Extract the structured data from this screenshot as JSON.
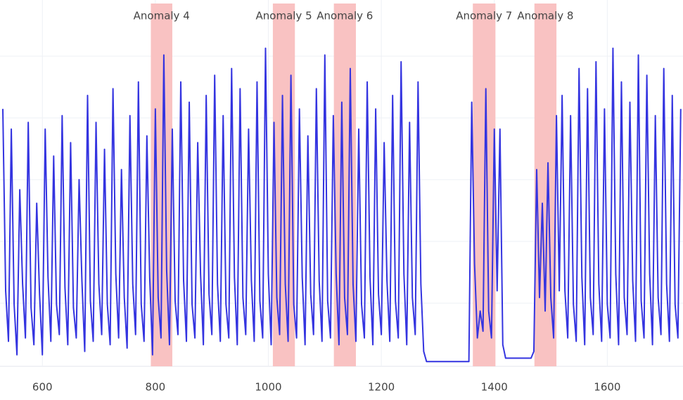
{
  "chart_data": {
    "type": "line",
    "x": [
      530,
      535,
      540,
      545,
      550,
      555,
      560,
      565,
      570,
      575,
      580,
      585,
      590,
      595,
      600,
      605,
      610,
      615,
      620,
      625,
      630,
      635,
      640,
      645,
      650,
      655,
      660,
      665,
      670,
      675,
      680,
      685,
      690,
      695,
      700,
      705,
      710,
      715,
      720,
      725,
      730,
      735,
      740,
      745,
      750,
      755,
      760,
      765,
      770,
      775,
      780,
      785,
      790,
      795,
      800,
      805,
      810,
      815,
      820,
      825,
      830,
      835,
      840,
      845,
      850,
      855,
      860,
      865,
      870,
      875,
      880,
      885,
      890,
      895,
      900,
      905,
      910,
      915,
      920,
      925,
      930,
      935,
      940,
      945,
      950,
      955,
      960,
      965,
      970,
      975,
      980,
      985,
      990,
      995,
      1000,
      1005,
      1010,
      1015,
      1020,
      1025,
      1030,
      1035,
      1040,
      1045,
      1050,
      1055,
      1060,
      1065,
      1070,
      1075,
      1080,
      1085,
      1090,
      1095,
      1100,
      1105,
      1110,
      1115,
      1120,
      1125,
      1130,
      1135,
      1140,
      1145,
      1150,
      1155,
      1160,
      1165,
      1170,
      1175,
      1180,
      1185,
      1190,
      1195,
      1200,
      1205,
      1210,
      1215,
      1220,
      1225,
      1230,
      1235,
      1240,
      1245,
      1250,
      1255,
      1260,
      1265,
      1270,
      1275,
      1280,
      1285,
      1290,
      1295,
      1300,
      1305,
      1310,
      1315,
      1320,
      1325,
      1330,
      1335,
      1340,
      1345,
      1350,
      1355,
      1360,
      1365,
      1370,
      1375,
      1380,
      1385,
      1390,
      1395,
      1400,
      1405,
      1410,
      1415,
      1420,
      1425,
      1430,
      1435,
      1440,
      1445,
      1450,
      1455,
      1460,
      1465,
      1470,
      1475,
      1480,
      1485,
      1490,
      1495,
      1500,
      1505,
      1510,
      1515,
      1520,
      1525,
      1530,
      1535,
      1540,
      1545,
      1550,
      1555,
      1560,
      1565,
      1570,
      1575,
      1580,
      1585,
      1590,
      1595,
      1600,
      1605,
      1610,
      1615,
      1620,
      1625,
      1630,
      1635,
      1640,
      1645,
      1650,
      1655,
      1660,
      1665,
      1670,
      1675,
      1680,
      1685,
      1690,
      1695,
      1700,
      1705,
      1710,
      1715,
      1720,
      1725,
      1730
    ],
    "series": [
      {
        "color": "#3434e0",
        "values": [
          76,
          22,
          7,
          70,
          18,
          3,
          52,
          24,
          8,
          72,
          17,
          6,
          48,
          21,
          3,
          70,
          26,
          7,
          62,
          18,
          9,
          74,
          23,
          6,
          66,
          17,
          8,
          55,
          25,
          4,
          80,
          19,
          7,
          72,
          24,
          9,
          64,
          18,
          6,
          82,
          27,
          8,
          58,
          20,
          5,
          74,
          24,
          9,
          84,
          18,
          7,
          68,
          26,
          3,
          76,
          20,
          8,
          92,
          28,
          6,
          70,
          19,
          9,
          84,
          25,
          7,
          78,
          18,
          8,
          66,
          27,
          6,
          80,
          21,
          9,
          86,
          24,
          7,
          74,
          18,
          8,
          88,
          26,
          6,
          82,
          20,
          9,
          70,
          25,
          7,
          84,
          19,
          8,
          94,
          27,
          6,
          72,
          20,
          9,
          80,
          24,
          7,
          86,
          18,
          8,
          76,
          26,
          6,
          68,
          21,
          9,
          82,
          25,
          7,
          92,
          19,
          8,
          74,
          27,
          6,
          78,
          20,
          9,
          88,
          24,
          7,
          70,
          18,
          8,
          84,
          26,
          6,
          76,
          21,
          9,
          66,
          25,
          7,
          80,
          19,
          8,
          90,
          27,
          6,
          72,
          20,
          9,
          84,
          24,
          4,
          1,
          1,
          1,
          1,
          1,
          1,
          1,
          1,
          1,
          1,
          1,
          1,
          1,
          1,
          1,
          1,
          78,
          30,
          8,
          16,
          10,
          82,
          16,
          8,
          70,
          22,
          70,
          6,
          2,
          2,
          2,
          2,
          2,
          2,
          2,
          2,
          2,
          2,
          4,
          58,
          20,
          48,
          16,
          60,
          20,
          8,
          74,
          22,
          80,
          22,
          8,
          74,
          18,
          7,
          88,
          26,
          6,
          82,
          20,
          9,
          90,
          24,
          7,
          76,
          18,
          8,
          94,
          27,
          6,
          84,
          20,
          9,
          78,
          25,
          7,
          92,
          19,
          8,
          86,
          27,
          6,
          74,
          20,
          9,
          88,
          24,
          7,
          80,
          18,
          8,
          76
        ]
      }
    ],
    "anomalies": [
      {
        "label": "Anomaly 4",
        "x0": 792,
        "x1": 830
      },
      {
        "label": "Anomaly 5",
        "x0": 1008,
        "x1": 1047
      },
      {
        "label": "Anomaly 6",
        "x0": 1116,
        "x1": 1155
      },
      {
        "label": "Anomaly 7",
        "x0": 1362,
        "x1": 1402
      },
      {
        "label": "Anomaly 8",
        "x0": 1471,
        "x1": 1510
      }
    ],
    "band_color": "#f9c2c2",
    "xlim": [
      525,
      1734
    ],
    "ylim": [
      0,
      100
    ],
    "xticks": [
      600,
      800,
      1000,
      1200,
      1400,
      1600
    ],
    "grid": true
  }
}
